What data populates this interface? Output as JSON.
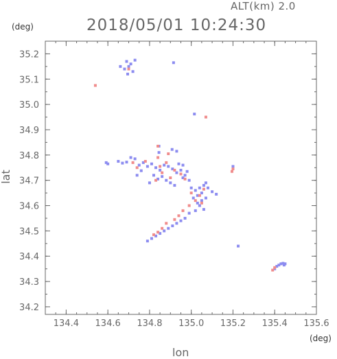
{
  "header": {
    "alt_label": "ALT(km)  2.0",
    "timestamp": "2018/05/01 10:24:30"
  },
  "axes": {
    "y_unit": "(deg)",
    "x_unit": "(deg)",
    "xlabel": "lon",
    "ylabel": "lat"
  },
  "chart_data": {
    "type": "scatter",
    "title": "2018/05/01 10:24:30",
    "subtitle": "ALT(km)  2.0",
    "xlabel": "lon",
    "ylabel": "lat",
    "xlim": [
      134.3,
      135.6
    ],
    "ylim": [
      34.17,
      35.25
    ],
    "x_ticks": [
      134.4,
      134.6,
      134.8,
      135.0,
      135.2,
      135.4,
      135.6
    ],
    "y_ticks": [
      34.2,
      34.3,
      34.4,
      34.5,
      34.6,
      34.7,
      34.8,
      34.9,
      35.0,
      35.1,
      35.2
    ],
    "x_tick_labels": [
      "134.4",
      "134.6",
      "134.8",
      "135.0",
      "135.2",
      "135.4",
      "135.6"
    ],
    "y_tick_labels": [
      "34.2",
      "34.3",
      "34.4",
      "34.5",
      "34.6",
      "34.7",
      "34.8",
      "34.9",
      "35.0",
      "35.1",
      "35.2"
    ],
    "grid": false,
    "colors": {
      "positive": "#f08c8c",
      "negative": "#8c8cf0",
      "axis": "#666666"
    },
    "series": [
      {
        "color": "#8c8cf0",
        "points": [
          [
            134.69,
            35.17
          ],
          [
            134.7,
            35.15
          ],
          [
            134.71,
            35.16
          ],
          [
            134.68,
            35.14
          ],
          [
            134.72,
            35.13
          ],
          [
            134.695,
            35.12
          ],
          [
            134.73,
            35.175
          ],
          [
            134.66,
            35.15
          ],
          [
            134.915,
            35.165
          ],
          [
            135.015,
            34.962
          ],
          [
            134.845,
            34.835
          ],
          [
            134.845,
            34.81
          ],
          [
            134.908,
            34.822
          ],
          [
            134.93,
            34.815
          ],
          [
            134.592,
            34.77
          ],
          [
            134.6,
            34.765
          ],
          [
            134.65,
            34.775
          ],
          [
            134.67,
            34.768
          ],
          [
            134.69,
            34.772
          ],
          [
            134.71,
            34.79
          ],
          [
            134.73,
            34.785
          ],
          [
            134.75,
            34.76
          ],
          [
            134.77,
            34.77
          ],
          [
            134.79,
            34.755
          ],
          [
            134.81,
            34.765
          ],
          [
            134.83,
            34.75
          ],
          [
            134.85,
            34.74
          ],
          [
            134.87,
            34.76
          ],
          [
            134.89,
            34.755
          ],
          [
            134.91,
            34.745
          ],
          [
            134.93,
            34.73
          ],
          [
            134.95,
            34.74
          ],
          [
            134.97,
            34.72
          ],
          [
            134.99,
            34.7
          ],
          [
            134.98,
            34.735
          ],
          [
            134.96,
            34.71
          ],
          [
            134.82,
            34.72
          ],
          [
            134.84,
            34.705
          ],
          [
            134.86,
            34.715
          ],
          [
            134.88,
            34.7
          ],
          [
            134.9,
            34.69
          ],
          [
            134.92,
            34.68
          ],
          [
            135.0,
            34.67
          ],
          [
            135.02,
            34.66
          ],
          [
            135.04,
            34.67
          ],
          [
            135.05,
            34.65
          ],
          [
            135.06,
            34.68
          ],
          [
            135.07,
            34.69
          ],
          [
            135.08,
            34.67
          ],
          [
            135.03,
            34.64
          ],
          [
            135.01,
            34.63
          ],
          [
            135.05,
            34.62
          ],
          [
            135.07,
            34.63
          ],
          [
            135.03,
            34.61
          ],
          [
            135.04,
            34.6
          ],
          [
            135.02,
            34.58
          ],
          [
            134.99,
            34.57
          ],
          [
            134.97,
            34.55
          ],
          [
            134.95,
            34.54
          ],
          [
            134.93,
            34.53
          ],
          [
            134.91,
            34.52
          ],
          [
            134.89,
            34.51
          ],
          [
            134.87,
            34.5
          ],
          [
            134.85,
            34.49
          ],
          [
            134.83,
            34.48
          ],
          [
            134.81,
            34.47
          ],
          [
            134.79,
            34.46
          ],
          [
            135.06,
            34.585
          ],
          [
            135.12,
            34.645
          ],
          [
            135.2,
            34.755
          ],
          [
            135.225,
            34.44
          ],
          [
            135.41,
            34.36
          ],
          [
            135.42,
            34.365
          ],
          [
            135.43,
            34.37
          ],
          [
            135.44,
            34.372
          ],
          [
            135.45,
            34.37
          ],
          [
            135.445,
            34.365
          ],
          [
            135.4,
            34.35
          ],
          [
            134.96,
            34.76
          ],
          [
            134.94,
            34.765
          ],
          [
            134.76,
            34.738
          ],
          [
            134.74,
            34.72
          ],
          [
            134.8,
            34.69
          ],
          [
            135.1,
            34.655
          ]
        ]
      },
      {
        "color": "#f08c8c",
        "points": [
          [
            134.54,
            35.075
          ],
          [
            134.7,
            35.14
          ],
          [
            135.07,
            34.95
          ],
          [
            134.84,
            34.835
          ],
          [
            134.84,
            34.79
          ],
          [
            134.89,
            34.805
          ],
          [
            134.74,
            34.75
          ],
          [
            134.78,
            34.775
          ],
          [
            134.86,
            34.73
          ],
          [
            134.85,
            34.755
          ],
          [
            134.88,
            34.77
          ],
          [
            134.92,
            34.74
          ],
          [
            134.95,
            34.725
          ],
          [
            134.97,
            34.705
          ],
          [
            134.9,
            34.71
          ],
          [
            134.83,
            34.7
          ],
          [
            135.0,
            34.65
          ],
          [
            135.02,
            34.62
          ],
          [
            135.05,
            34.61
          ],
          [
            135.04,
            34.64
          ],
          [
            134.99,
            34.6
          ],
          [
            134.96,
            34.58
          ],
          [
            134.94,
            34.56
          ],
          [
            134.92,
            34.545
          ],
          [
            134.88,
            34.53
          ],
          [
            134.86,
            34.51
          ],
          [
            134.84,
            34.495
          ],
          [
            134.82,
            34.485
          ],
          [
            135.2,
            34.745
          ],
          [
            135.195,
            34.735
          ],
          [
            135.39,
            34.345
          ],
          [
            135.4,
            34.355
          ],
          [
            134.72,
            34.77
          ],
          [
            135.06,
            34.665
          ]
        ]
      }
    ]
  }
}
